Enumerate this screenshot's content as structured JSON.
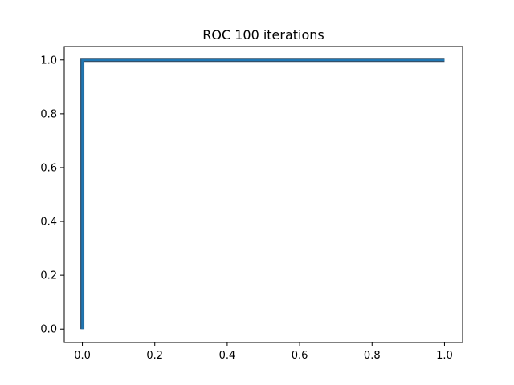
{
  "chart_data": {
    "type": "line",
    "title": "ROC 100 iterations",
    "xlabel": "",
    "ylabel": "",
    "xlim": [
      -0.05,
      1.05
    ],
    "ylim": [
      -0.05,
      1.05
    ],
    "x_ticks": [
      0.0,
      0.2,
      0.4,
      0.6,
      0.8,
      1.0
    ],
    "x_tick_labels": [
      "0.0",
      "0.2",
      "0.4",
      "0.6",
      "0.8",
      "1.0"
    ],
    "y_ticks": [
      0.0,
      0.2,
      0.4,
      0.6,
      0.8,
      1.0
    ],
    "y_tick_labels": [
      "0.0",
      "0.2",
      "0.4",
      "0.6",
      "0.8",
      "1.0"
    ],
    "grid": false,
    "series": [
      {
        "name": "ROC",
        "color": "#1f77b4",
        "x": [
          0.0,
          0.0,
          1.0
        ],
        "y": [
          0.0,
          1.0,
          1.0
        ]
      }
    ]
  }
}
